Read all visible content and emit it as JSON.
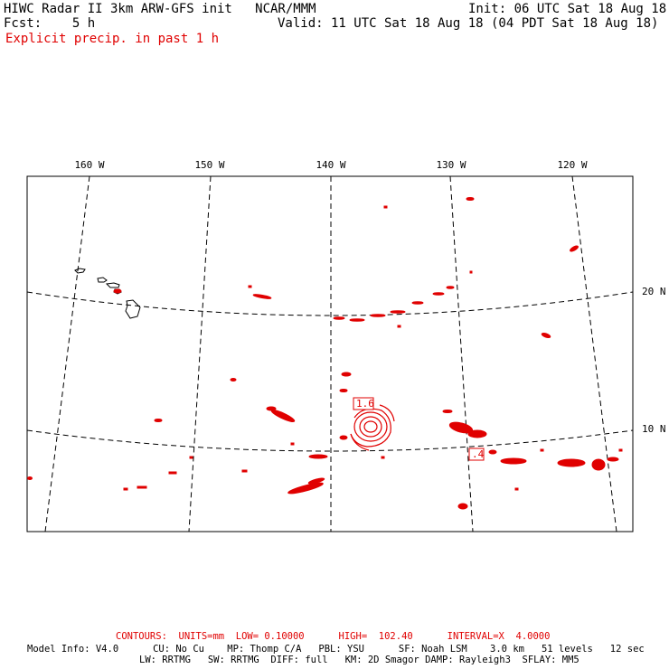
{
  "header": {
    "title_left": "HIWC Radar II 3km ARW-GFS init   NCAR/MMM",
    "fcst": "Fcst:    5 h",
    "init": "Init: 06 UTC Sat 18 Aug 18",
    "valid": "Valid: 11 UTC Sat 18 Aug 18 (04 PDT Sat 18 Aug 18)",
    "field": "Explicit precip. in past 1 h"
  },
  "map": {
    "lon_labels": [
      "160 W",
      "150 W",
      "140 W",
      "130 W",
      "120 W"
    ],
    "lat_labels": [
      "20 N",
      "10 N"
    ],
    "contour_labels": [
      "1.6",
      ".4"
    ],
    "colors": {
      "precip": "#e00000",
      "grid": "#000000",
      "coast": "#000000"
    }
  },
  "footer": {
    "contours": "CONTOURS:  UNITS=mm  LOW= 0.10000      HIGH=  102.40      INTERVAL=X  4.0000",
    "model_line1": "Model Info: V4.0      CU: No Cu    MP: Thomp C/A   PBL: YSU      SF: Noah LSM    3.0 km   51 levels   12 sec",
    "model_line2": "LW: RRTMG   SW: RRTMG  DIFF: full   KM: 2D Smagor DAMP: Rayleigh3  SFLAY: MM5"
  }
}
